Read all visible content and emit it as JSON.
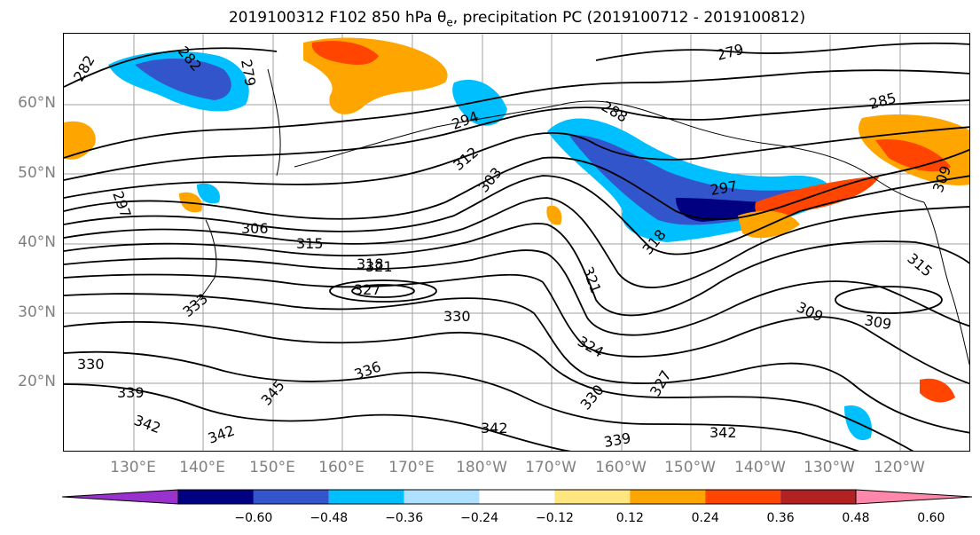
{
  "title": "2019100312 F102 850 hPa θe, precipitation PC (2019100712 - 2019100812)",
  "title_parts": {
    "pre": "2019100312 F102 850 hPa θ",
    "sub": "e",
    "post": ", precipitation PC (2019100712 - 2019100812)"
  },
  "map": {
    "projection": "plate-carree",
    "lon_range": "120°E to 115°W",
    "lat_range": "10°N to 70°N",
    "lat_labels": [
      "60°N",
      "50°N",
      "40°N",
      "30°N",
      "20°N"
    ],
    "lon_labels": [
      "130°E",
      "140°E",
      "150°E",
      "160°E",
      "170°E",
      "180°W",
      "170°W",
      "160°W",
      "150°W",
      "140°W",
      "130°W",
      "120°W"
    ],
    "contour_labels": [
      "282",
      "282",
      "279",
      "279",
      "294",
      "288",
      "312",
      "303",
      "297",
      "285",
      "309",
      "297",
      "306",
      "315",
      "321",
      "318",
      "327",
      "321",
      "318",
      "315",
      "333",
      "330",
      "309",
      "309",
      "324",
      "330",
      "339",
      "336",
      "345",
      "327",
      "342",
      "330",
      "342",
      "339",
      "342",
      "342"
    ],
    "shading_variable": "precipitation PC",
    "contour_variable": "850 hPa theta-e (K)"
  },
  "colorbar": {
    "tick_labels": [
      "−0.60",
      "−0.48",
      "−0.36",
      "−0.24",
      "−0.12",
      "0.12",
      "0.24",
      "0.36",
      "0.48",
      "0.60"
    ],
    "colors": [
      "#9932CC",
      "#000080",
      "#3355CC",
      "#00BFFF",
      "#ADE1FF",
      "#FFFFFF",
      "#FFE680",
      "#FFA500",
      "#FF4500",
      "#B22222",
      "#FF88AA"
    ],
    "extend": "both"
  }
}
